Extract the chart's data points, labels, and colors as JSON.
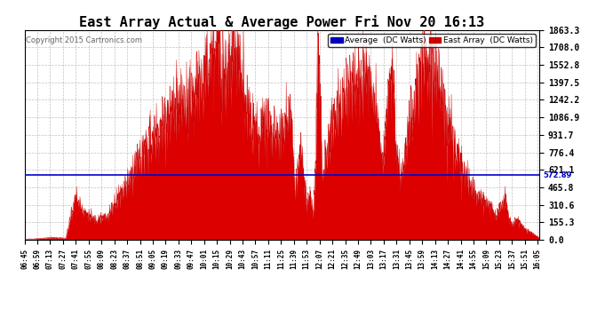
{
  "title": "East Array Actual & Average Power Fri Nov 20 16:13",
  "copyright": "Copyright 2015 Cartronics.com",
  "legend_items": [
    "Average  (DC Watts)",
    "East Array  (DC Watts)"
  ],
  "legend_colors": [
    "#0000bb",
    "#cc0000"
  ],
  "average_value": 572.89,
  "ymax": 1863.3,
  "ymin": 0.0,
  "yticks": [
    0.0,
    155.3,
    310.6,
    465.8,
    621.1,
    776.4,
    931.7,
    1086.9,
    1242.2,
    1397.5,
    1552.8,
    1708.0,
    1863.3
  ],
  "background_color": "#ffffff",
  "grid_color": "#999999",
  "title_fontsize": 11,
  "x_start_min": 405,
  "x_end_min": 967,
  "x_step_min": 14
}
